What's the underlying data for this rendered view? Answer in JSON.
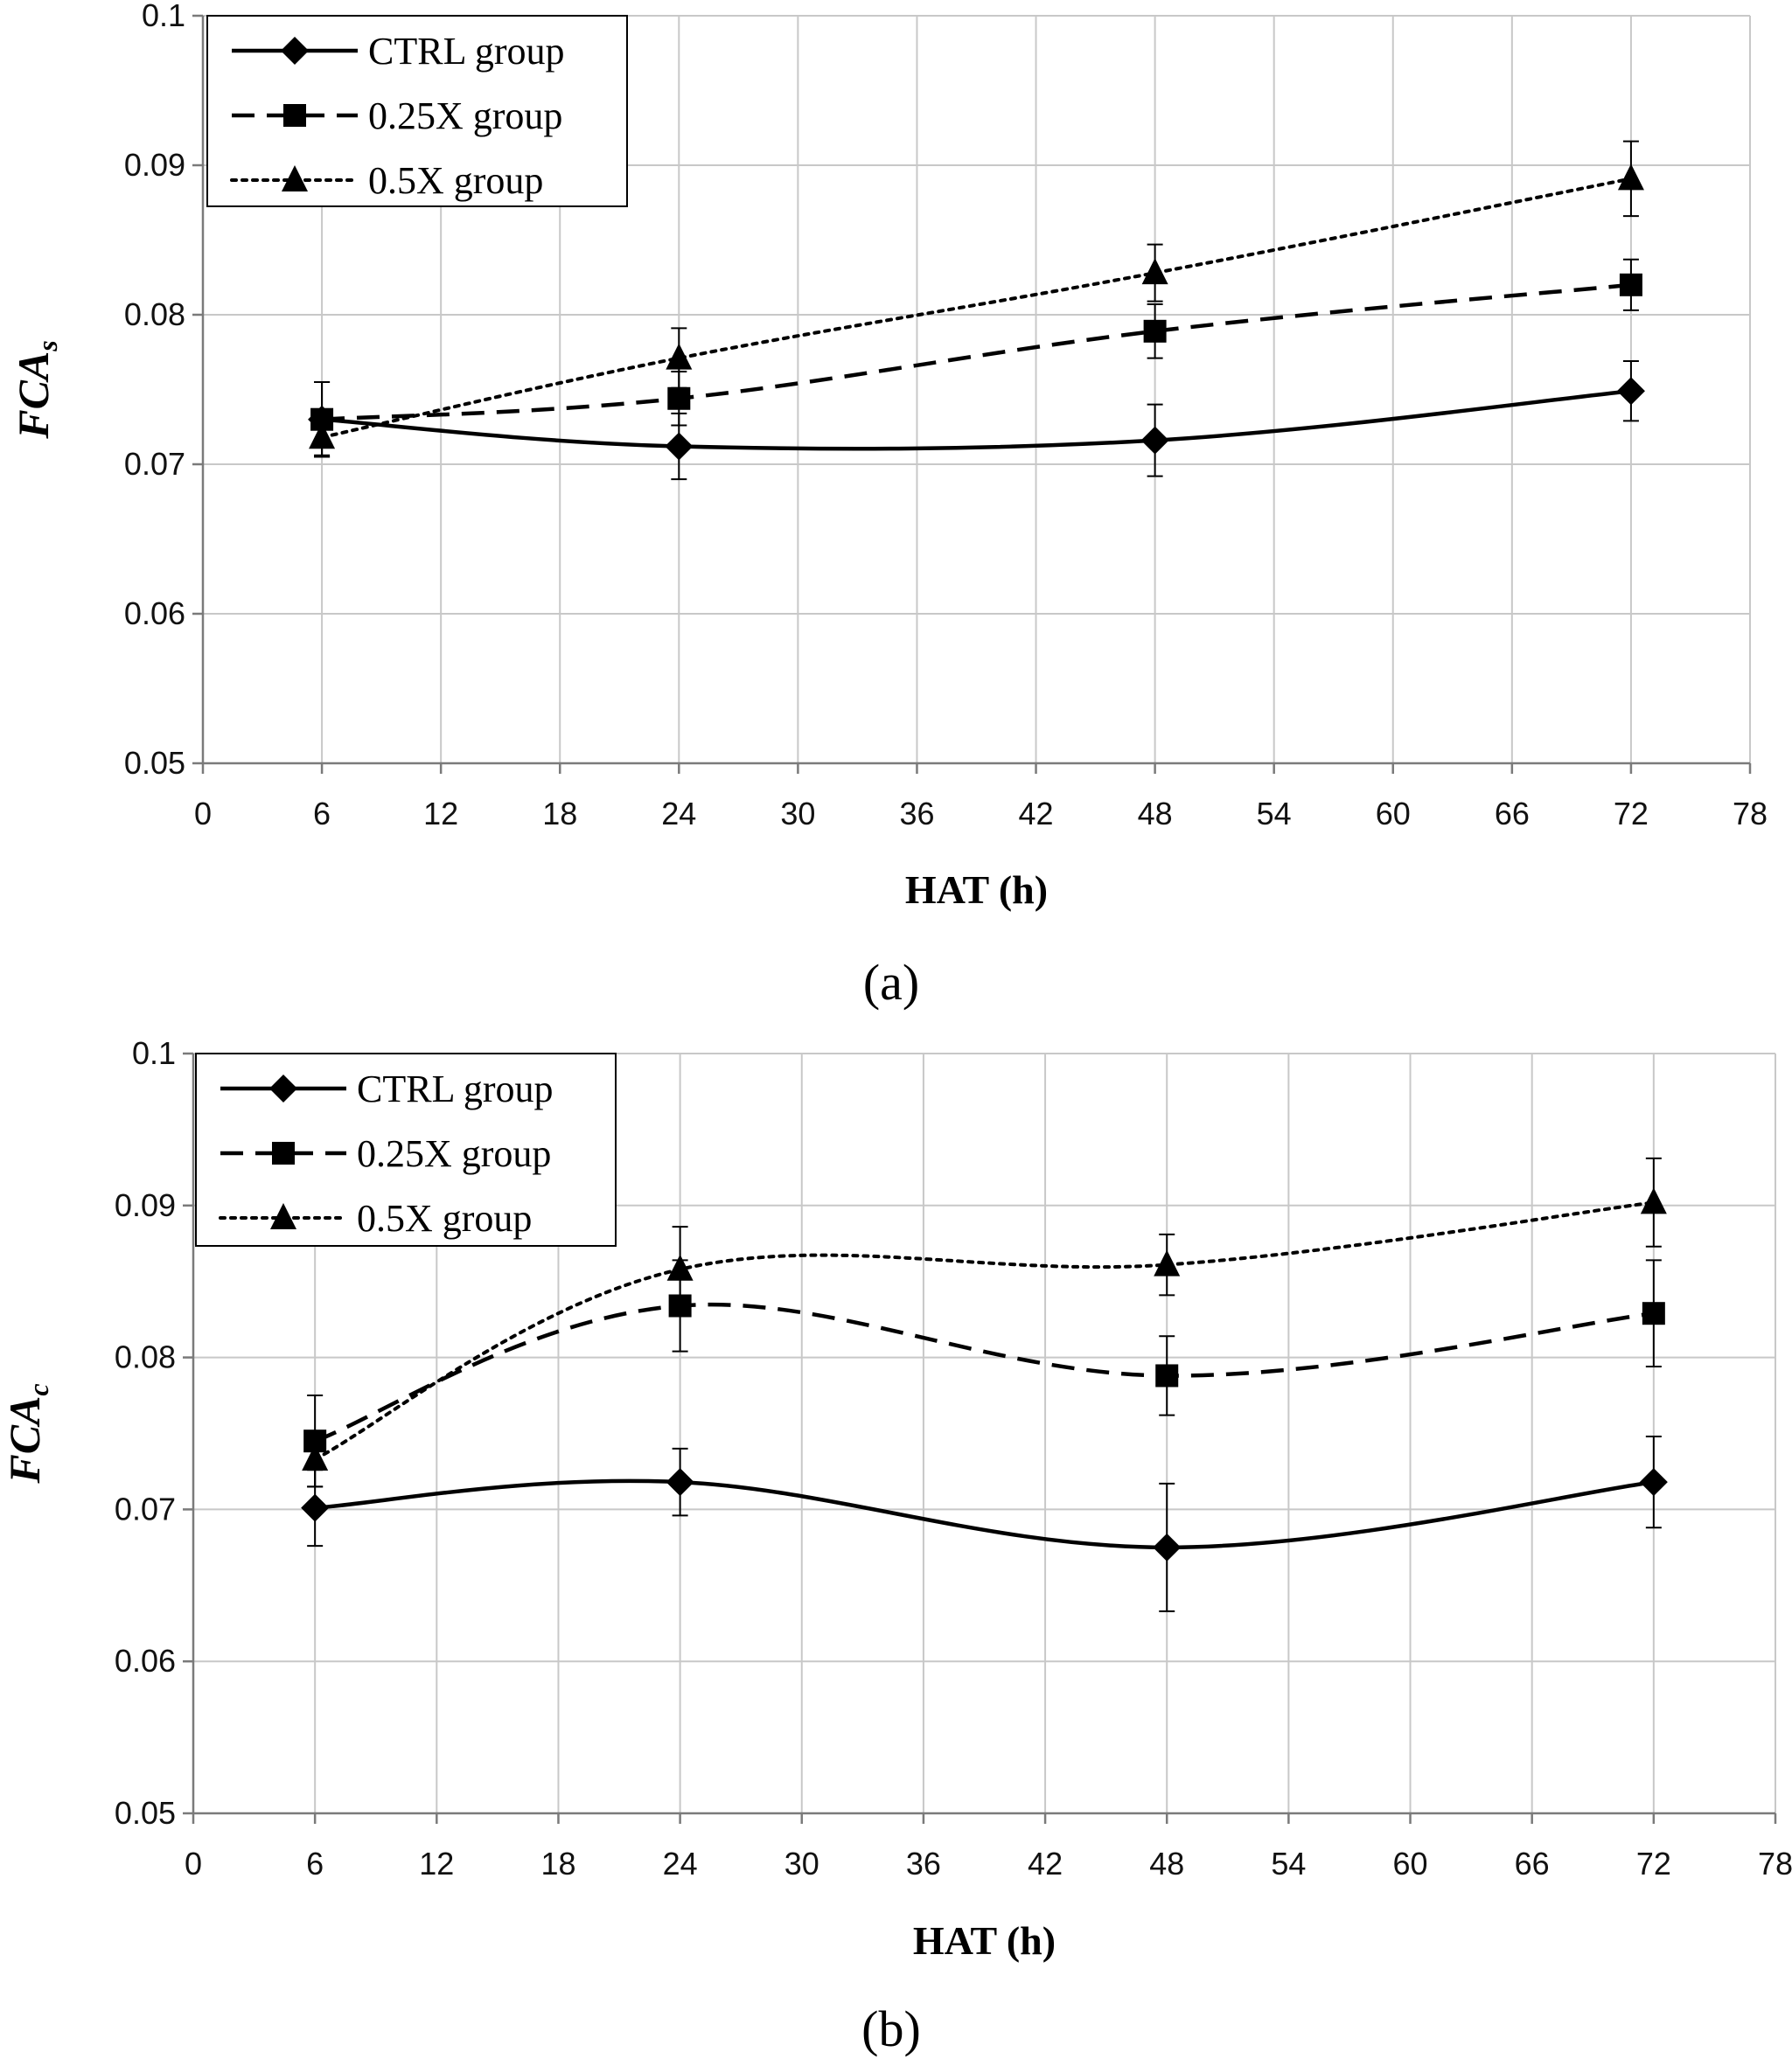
{
  "figure": {
    "panel_labels": [
      "(a)",
      "(b)"
    ]
  },
  "chart_data": [
    {
      "type": "line",
      "panel": "(a)",
      "title": "",
      "xlabel": "HAT (h)",
      "ylabel": "FCA",
      "ylabel_subscript": "s",
      "xlim": [
        0,
        78
      ],
      "ylim": [
        0.05,
        0.1
      ],
      "x_ticks": [
        "0",
        "6",
        "12",
        "18",
        "24",
        "30",
        "36",
        "42",
        "48",
        "54",
        "60",
        "66",
        "72",
        "78"
      ],
      "y_ticks": [
        "0.05",
        "0.06",
        "0.07",
        "0.08",
        "0.09",
        "0.1"
      ],
      "grid": true,
      "legend_position": "top-left",
      "x": [
        6,
        24,
        48,
        72
      ],
      "series": [
        {
          "name": "CTRL group",
          "marker": "diamond",
          "dash": "solid",
          "values": [
            0.073,
            0.0712,
            0.0716,
            0.0749
          ],
          "errors": [
            0.0025,
            0.0022,
            0.0024,
            0.002
          ]
        },
        {
          "name": "0.25X group",
          "marker": "square",
          "dash": "dashed",
          "values": [
            0.073,
            0.0744,
            0.0789,
            0.082
          ],
          "errors": [
            0.0025,
            0.0018,
            0.0018,
            0.0017
          ]
        },
        {
          "name": "0.5X group",
          "marker": "triangle",
          "dash": "dotted",
          "values": [
            0.0718,
            0.0771,
            0.0828,
            0.0891
          ],
          "errors": [
            0.0012,
            0.002,
            0.0019,
            0.0025
          ]
        }
      ]
    },
    {
      "type": "line",
      "panel": "(b)",
      "title": "",
      "xlabel": "HAT (h)",
      "ylabel": "FCA",
      "ylabel_subscript": "c",
      "xlim": [
        0,
        78
      ],
      "ylim": [
        0.05,
        0.1
      ],
      "x_ticks": [
        "0",
        "6",
        "12",
        "18",
        "24",
        "30",
        "36",
        "42",
        "48",
        "54",
        "60",
        "66",
        "72",
        "78"
      ],
      "y_ticks": [
        "0.05",
        "0.06",
        "0.07",
        "0.08",
        "0.09",
        "0.1"
      ],
      "grid": true,
      "legend_position": "top-left",
      "x": [
        6,
        24,
        48,
        72
      ],
      "series": [
        {
          "name": "CTRL group",
          "marker": "diamond",
          "dash": "solid",
          "values": [
            0.0701,
            0.0718,
            0.0675,
            0.0718
          ],
          "errors": [
            0.0025,
            0.0022,
            0.0042,
            0.003
          ]
        },
        {
          "name": "0.25X group",
          "marker": "square",
          "dash": "dashed",
          "values": [
            0.0745,
            0.0834,
            0.0788,
            0.0829
          ],
          "errors": [
            0.003,
            0.003,
            0.0026,
            0.0035
          ]
        },
        {
          "name": "0.5X group",
          "marker": "triangle",
          "dash": "dotted",
          "values": [
            0.0733,
            0.0858,
            0.0861,
            0.0902
          ],
          "errors": [
            0.0018,
            0.0028,
            0.002,
            0.0029
          ]
        }
      ]
    }
  ]
}
